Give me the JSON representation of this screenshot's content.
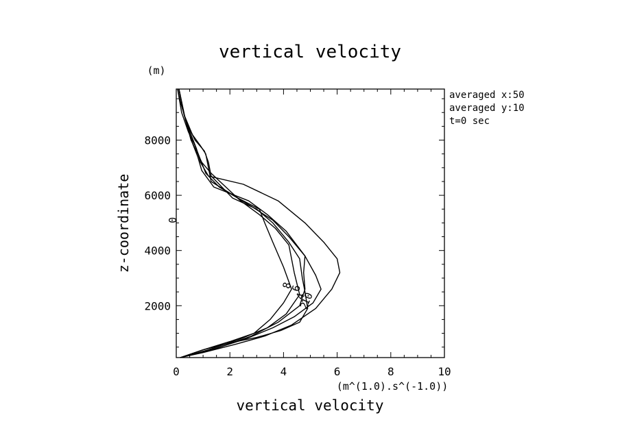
{
  "chart_data": {
    "type": "line",
    "title": "vertical velocity",
    "xlabel": "vertical velocity",
    "xunit": "(m^(1.0).s^(-1.0))",
    "ylabel": "z-coordinate",
    "yunit": "(m)",
    "xlim": [
      0,
      10
    ],
    "ylim": [
      120,
      9850
    ],
    "x_ticks": [
      "0",
      "2",
      "4",
      "6",
      "8",
      "10"
    ],
    "y_ticks": [
      "2000",
      "4000",
      "6000",
      "8000"
    ],
    "grid": false,
    "info_lines": [
      "averaged  x:50",
      "averaged  y:10",
      "t=0 sec"
    ],
    "series": [
      {
        "label": "0",
        "points": [
          [
            0.15,
            120
          ],
          [
            1.0,
            400
          ],
          [
            2.0,
            700
          ],
          [
            2.9,
            1000
          ],
          [
            3.5,
            1500
          ],
          [
            4.0,
            2100
          ],
          [
            4.3,
            2600
          ],
          [
            4.0,
            3400
          ],
          [
            3.6,
            4300
          ],
          [
            3.3,
            5000
          ],
          [
            3.1,
            5500
          ],
          [
            2.3,
            5900
          ],
          [
            1.3,
            6500
          ],
          [
            1.2,
            7000
          ],
          [
            1.1,
            7500
          ],
          [
            0.9,
            7800
          ],
          [
            0.6,
            8200
          ],
          [
            0.3,
            8900
          ],
          [
            0.15,
            9400
          ],
          [
            0.05,
            9850
          ]
        ]
      },
      {
        "label": "2",
        "points": [
          [
            0.15,
            120
          ],
          [
            1.0,
            400
          ],
          [
            2.0,
            650
          ],
          [
            3.0,
            850
          ],
          [
            3.9,
            1100
          ],
          [
            4.6,
            1400
          ],
          [
            4.9,
            1900
          ],
          [
            4.8,
            2500
          ],
          [
            4.7,
            3000
          ],
          [
            4.6,
            3700
          ],
          [
            4.2,
            4300
          ],
          [
            3.6,
            5000
          ],
          [
            3.0,
            5500
          ],
          [
            2.1,
            5900
          ],
          [
            1.3,
            6700
          ],
          [
            1.2,
            7200
          ],
          [
            1.05,
            7600
          ],
          [
            0.7,
            8000
          ],
          [
            0.35,
            8700
          ],
          [
            0.1,
            9850
          ]
        ]
      },
      {
        "label": "4",
        "points": [
          [
            0.15,
            120
          ],
          [
            1.2,
            400
          ],
          [
            2.4,
            800
          ],
          [
            3.4,
            1200
          ],
          [
            4.1,
            1700
          ],
          [
            4.6,
            2400
          ],
          [
            4.4,
            3200
          ],
          [
            4.2,
            4200
          ],
          [
            3.7,
            4800
          ],
          [
            3.1,
            5300
          ],
          [
            2.4,
            5800
          ],
          [
            1.3,
            6800
          ],
          [
            0.95,
            7200
          ],
          [
            0.75,
            7600
          ],
          [
            0.55,
            8000
          ],
          [
            0.3,
            8900
          ],
          [
            0.1,
            9850
          ]
        ]
      },
      {
        "label": "6",
        "points": [
          [
            0.15,
            120
          ],
          [
            1.5,
            450
          ],
          [
            2.8,
            900
          ],
          [
            3.8,
            1400
          ],
          [
            4.6,
            2000
          ],
          [
            4.8,
            2600
          ],
          [
            4.75,
            3200
          ],
          [
            4.8,
            3800
          ],
          [
            4.1,
            4700
          ],
          [
            3.4,
            5300
          ],
          [
            2.7,
            5800
          ],
          [
            1.4,
            6300
          ],
          [
            0.95,
            6900
          ],
          [
            0.8,
            7400
          ],
          [
            0.6,
            7900
          ],
          [
            0.3,
            8900
          ],
          [
            0.1,
            9850
          ]
        ]
      },
      {
        "label": "8",
        "points": [
          [
            0.15,
            120
          ],
          [
            1.3,
            400
          ],
          [
            2.6,
            800
          ],
          [
            3.6,
            1200
          ],
          [
            4.4,
            1600
          ],
          [
            5.1,
            2100
          ],
          [
            5.4,
            2600
          ],
          [
            5.2,
            3100
          ],
          [
            4.8,
            3800
          ],
          [
            4.2,
            4500
          ],
          [
            3.6,
            5100
          ],
          [
            2.8,
            5600
          ],
          [
            1.6,
            6300
          ],
          [
            1.1,
            6800
          ],
          [
            0.9,
            7300
          ],
          [
            0.7,
            7800
          ],
          [
            0.45,
            8300
          ],
          [
            0.2,
            9000
          ],
          [
            0.05,
            9850
          ]
        ]
      },
      {
        "label": "10",
        "points": [
          [
            0.15,
            120
          ],
          [
            1.0,
            300
          ],
          [
            2.2,
            600
          ],
          [
            3.3,
            900
          ],
          [
            4.3,
            1300
          ],
          [
            5.2,
            1900
          ],
          [
            5.8,
            2600
          ],
          [
            6.1,
            3200
          ],
          [
            6.0,
            3700
          ],
          [
            5.5,
            4300
          ],
          [
            4.8,
            5000
          ],
          [
            3.8,
            5800
          ],
          [
            2.5,
            6400
          ],
          [
            1.2,
            6700
          ],
          [
            0.9,
            7200
          ],
          [
            0.75,
            7700
          ],
          [
            0.55,
            8200
          ],
          [
            0.3,
            8900
          ],
          [
            0.1,
            9850
          ]
        ]
      }
    ]
  }
}
